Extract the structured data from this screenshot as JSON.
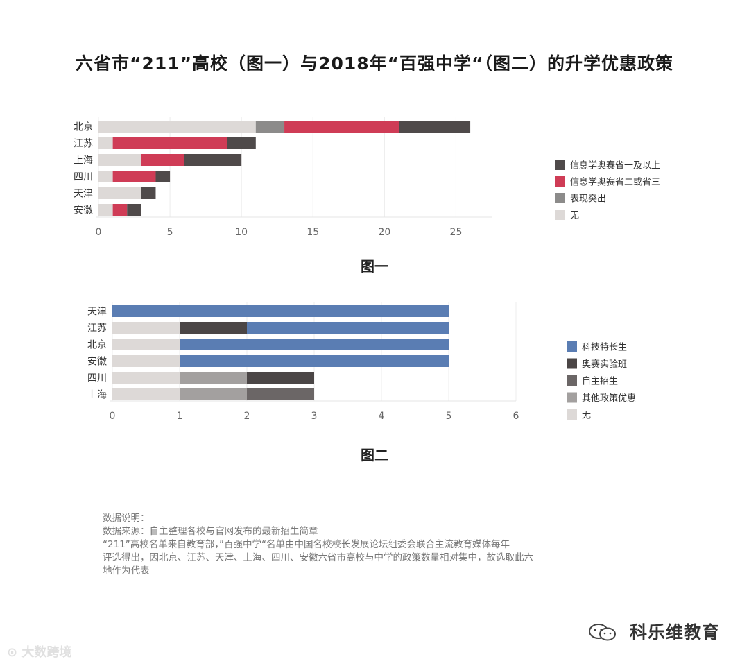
{
  "title": "六省市“211”高校（图一）与2018年“百强中学“（图二）的升学优惠政策",
  "colors": {
    "none": "#ddd9d7",
    "performance": "#8c8b8a",
    "olympiad_2_3": "#cf3c56",
    "olympiad_1": "#4f4a4a",
    "tech": "#5a7db3",
    "olympiad_class": "#4b4646",
    "self_recruit": "#6b6666",
    "other_policy": "#a3a09f"
  },
  "chart_data": [
    {
      "type": "bar",
      "orientation": "horizontal",
      "stacked": true,
      "categories": [
        "北京",
        "江苏",
        "上海",
        "四川",
        "天津",
        "安徽"
      ],
      "series": [
        {
          "name": "无",
          "values": [
            11,
            1,
            3,
            1,
            3,
            1
          ],
          "color_key": "none"
        },
        {
          "name": "表现突出",
          "values": [
            2,
            0,
            0,
            0,
            0,
            0
          ],
          "color_key": "performance"
        },
        {
          "name": "信息学奥赛省二或省三",
          "values": [
            8,
            8,
            3,
            3,
            0,
            1
          ],
          "color_key": "olympiad_2_3"
        },
        {
          "name": "信息学奥赛省一及以上",
          "values": [
            5,
            2,
            4,
            1,
            1,
            1
          ],
          "color_key": "olympiad_1"
        }
      ],
      "legend_order": [
        "信息学奥赛省一及以上",
        "信息学奥赛省二或省三",
        "表现突出",
        "无"
      ],
      "xticks": [
        0,
        5,
        10,
        15,
        20,
        25
      ],
      "xlim": [
        0,
        27.5
      ],
      "grid": true,
      "legend_position": "right",
      "caption": "图一"
    },
    {
      "type": "bar",
      "orientation": "horizontal",
      "stacked": true,
      "categories": [
        "天津",
        "江苏",
        "北京",
        "安徽",
        "四川",
        "上海"
      ],
      "series": [
        {
          "name": "无",
          "values": [
            0,
            1,
            1,
            1,
            1,
            1
          ],
          "color_key": "none"
        },
        {
          "name": "其他政策优惠",
          "values": [
            0,
            0,
            0,
            0,
            1,
            1
          ],
          "color_key": "other_policy"
        },
        {
          "name": "自主招生",
          "values": [
            0,
            0,
            0,
            0,
            0,
            1
          ],
          "color_key": "self_recruit"
        },
        {
          "name": "奥赛实验班",
          "values": [
            0,
            1,
            0,
            0,
            1,
            0
          ],
          "color_key": "olympiad_class"
        },
        {
          "name": "科技特长生",
          "values": [
            5,
            3,
            4,
            4,
            0,
            0
          ],
          "color_key": "tech"
        }
      ],
      "legend_order": [
        "科技特长生",
        "奥赛实验班",
        "自主招生",
        "其他政策优惠",
        "无"
      ],
      "xticks": [
        0,
        1,
        2,
        3,
        4,
        5,
        6
      ],
      "xlim": [
        0,
        6
      ],
      "grid": true,
      "legend_position": "right",
      "caption": "图二"
    }
  ],
  "notes": {
    "heading": "数据说明：",
    "source": "数据来源：自主整理各校与官网发布的最新招生简章",
    "line1": "“211”高校名单来自教育部，”百强中学“名单由中国名校校长发展论坛组委会联合主流教育媒体每年",
    "line2": "评选得出，因北京、江苏、天津、上海、四川、安徽六省市高校与中学的政策数量相对集中，故选取此六",
    "line3": "地作为代表"
  },
  "brand": "科乐维教育",
  "watermark": "大数跨境"
}
